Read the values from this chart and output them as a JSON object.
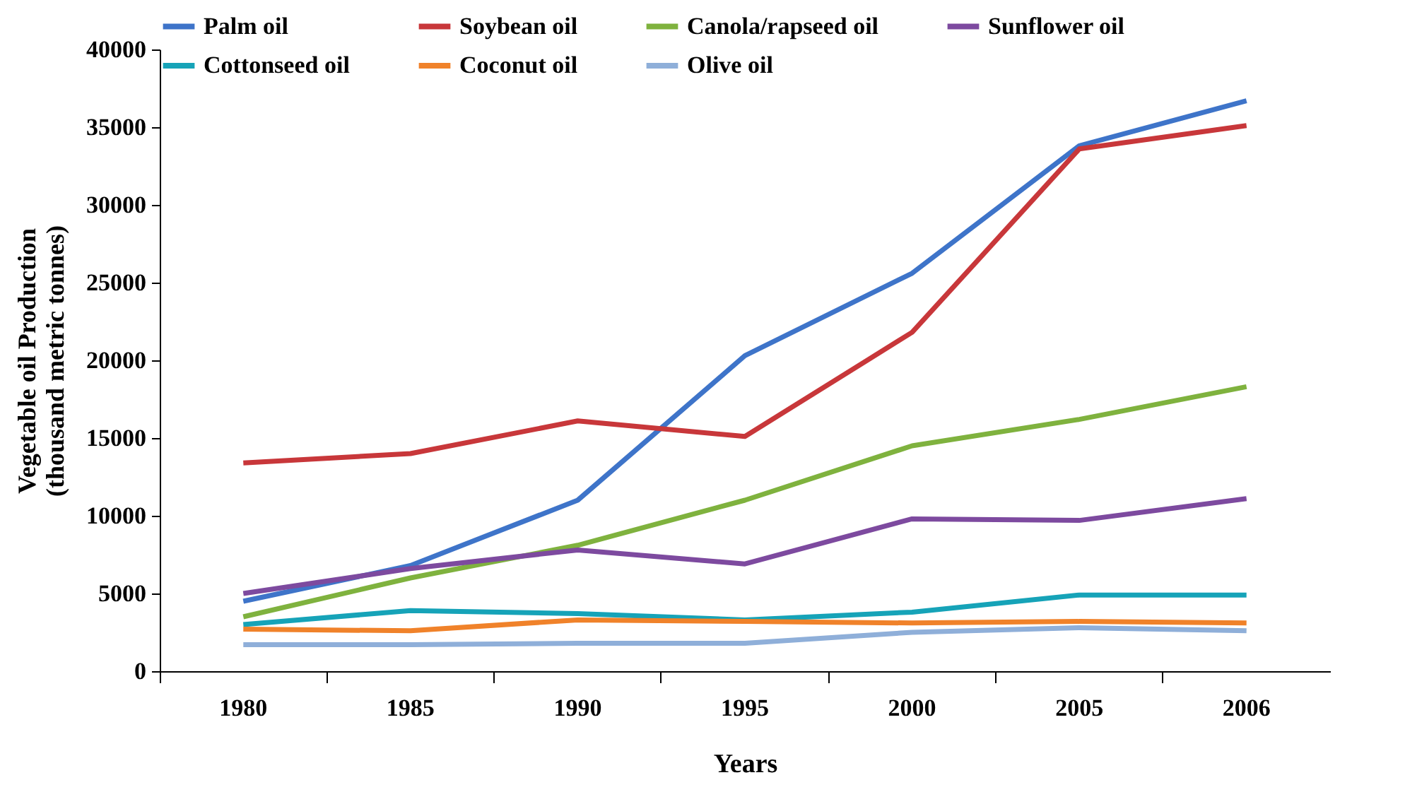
{
  "chart_data": {
    "type": "line",
    "xlabel": "Years",
    "ylabel": "Vegetable oil Production\n(thousand metric tonnes)",
    "categories": [
      "1980",
      "1985",
      "1990",
      "1995",
      "2000",
      "2005",
      "2006"
    ],
    "ylim": [
      0,
      40000
    ],
    "yticks": [
      0,
      5000,
      10000,
      15000,
      20000,
      25000,
      30000,
      35000,
      40000
    ],
    "grid": false,
    "legend": "top",
    "marker": "none",
    "line_style": "solid",
    "series": [
      {
        "name": "Palm oil",
        "color": "#3e74c9",
        "values": [
          4500,
          6800,
          11000,
          20300,
          25600,
          33800,
          36700
        ]
      },
      {
        "name": "Soybean oil",
        "color": "#c8373a",
        "values": [
          13400,
          14000,
          16100,
          15100,
          21800,
          33600,
          35100
        ]
      },
      {
        "name": "Canola/rapseed oil",
        "color": "#7fb23e",
        "values": [
          3500,
          6000,
          8100,
          11000,
          14500,
          16200,
          18300
        ]
      },
      {
        "name": "Sunflower oil",
        "color": "#7d4a9f",
        "values": [
          5000,
          6600,
          7800,
          6900,
          9800,
          9700,
          11100
        ]
      },
      {
        "name": "Cottonseed oil",
        "color": "#16a3b8",
        "values": [
          3000,
          3900,
          3700,
          3300,
          3800,
          4900,
          4900
        ]
      },
      {
        "name": "Coconut oil",
        "color": "#f0822a",
        "values": [
          2700,
          2600,
          3300,
          3200,
          3100,
          3200,
          3100
        ]
      },
      {
        "name": "Olive oil",
        "color": "#8fafd9",
        "values": [
          1700,
          1700,
          1800,
          1800,
          2500,
          2800,
          2600
        ]
      }
    ]
  }
}
